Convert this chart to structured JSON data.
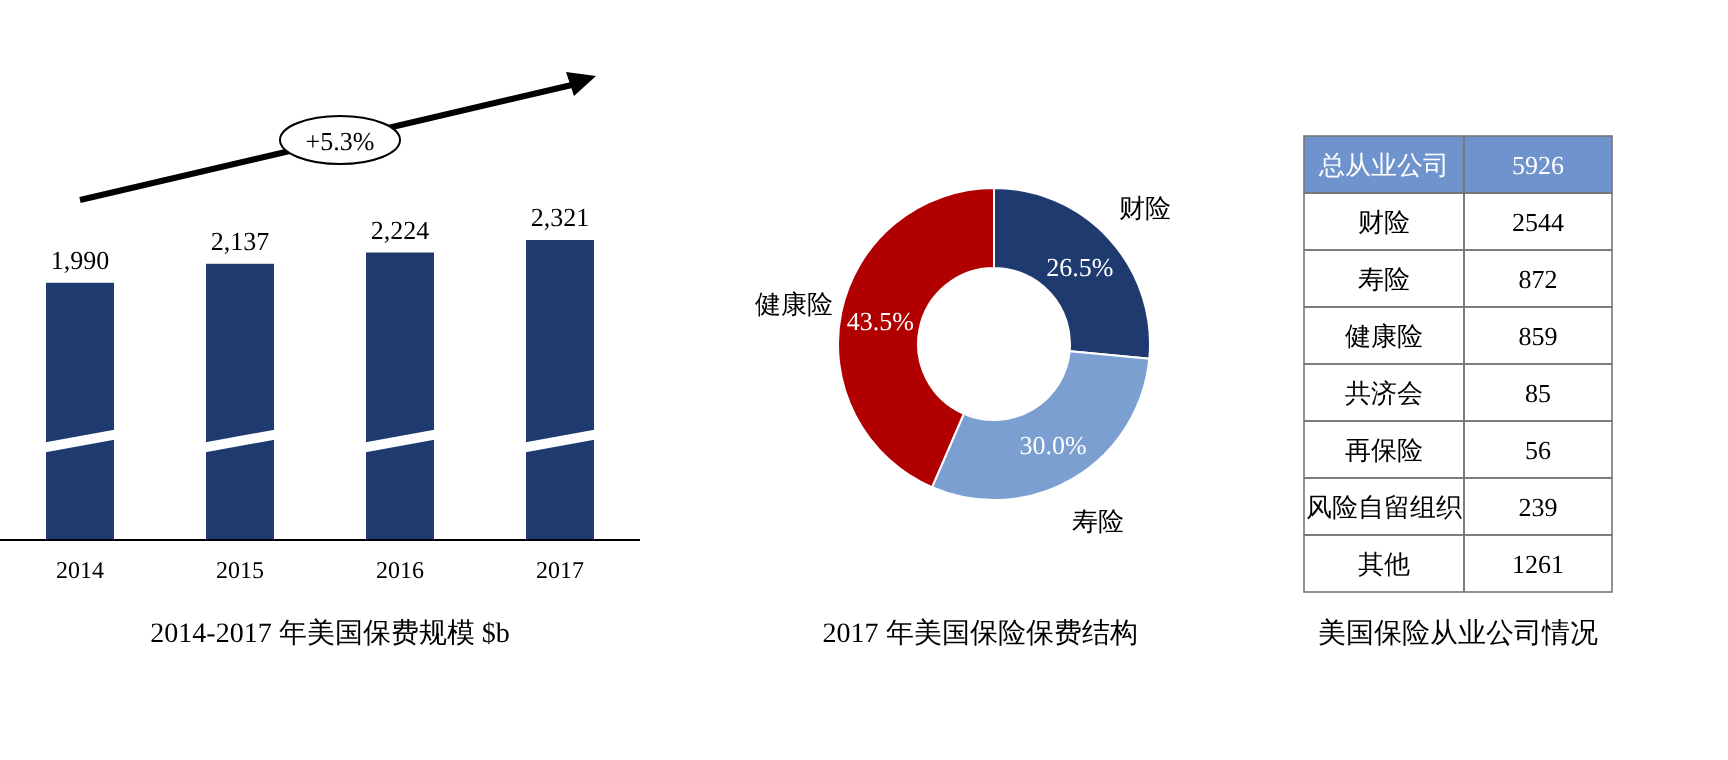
{
  "chart_data": [
    {
      "type": "bar",
      "title": "2014-2017 年美国保费规模 $b",
      "categories": [
        "2014",
        "2015",
        "2016",
        "2017"
      ],
      "values": [
        1990,
        2137,
        2224,
        2321
      ],
      "value_labels": [
        "1,990",
        "2,137",
        "2,224",
        "2,321"
      ],
      "color": "#1f3a6e",
      "annotations": [
        "+5.3%"
      ]
    },
    {
      "type": "donut",
      "title": "2017 年美国保险保费结构",
      "categories": [
        "财险",
        "寿险",
        "健康险"
      ],
      "values": [
        26.5,
        30.0,
        43.5
      ],
      "colors": [
        "#1f3a6e",
        "#7b9fd0",
        "#b00000"
      ],
      "value_labels": [
        "26.5%",
        "30.0%",
        "43.5%"
      ]
    },
    {
      "type": "other",
      "title": "美国保险从业公司情况",
      "categories": [
        "总从业公司",
        "财险",
        "寿险",
        "健康险",
        "共济会",
        "再保险",
        "风险自留组织",
        "其他"
      ],
      "values": [
        5926,
        2544,
        872,
        859,
        85,
        56,
        239,
        1261
      ],
      "color": "#6f93cc",
      "data_labels": true
    }
  ]
}
